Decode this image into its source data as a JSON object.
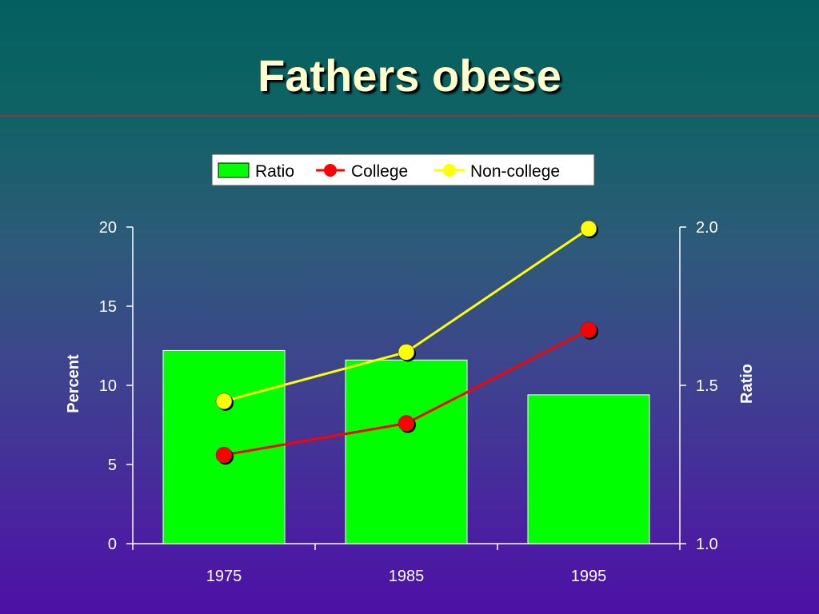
{
  "title": "Fathers obese",
  "chart_data": {
    "type": "bar",
    "categories": [
      "1975",
      "1985",
      "1995"
    ],
    "ylabel": "Percent",
    "y2label": "Ratio",
    "ylim": [
      0,
      20
    ],
    "y2lim": [
      1.0,
      2.0
    ],
    "yticks": [
      "0",
      "5",
      "10",
      "15",
      "20"
    ],
    "y2ticks": [
      "1.0",
      "1.5",
      "2.0"
    ],
    "legend_position": "top-center",
    "series": [
      {
        "name": "Ratio",
        "kind": "bar",
        "axis": "right",
        "values": [
          1.61,
          1.58,
          1.47
        ],
        "color": "#00ff00"
      },
      {
        "name": "College",
        "kind": "line",
        "axis": "left",
        "values": [
          5.6,
          7.6,
          13.5
        ],
        "color": "#ff0000"
      },
      {
        "name": "Non-college",
        "kind": "line",
        "axis": "left",
        "values": [
          9.0,
          12.1,
          19.9
        ],
        "color": "#ffff00"
      }
    ]
  }
}
